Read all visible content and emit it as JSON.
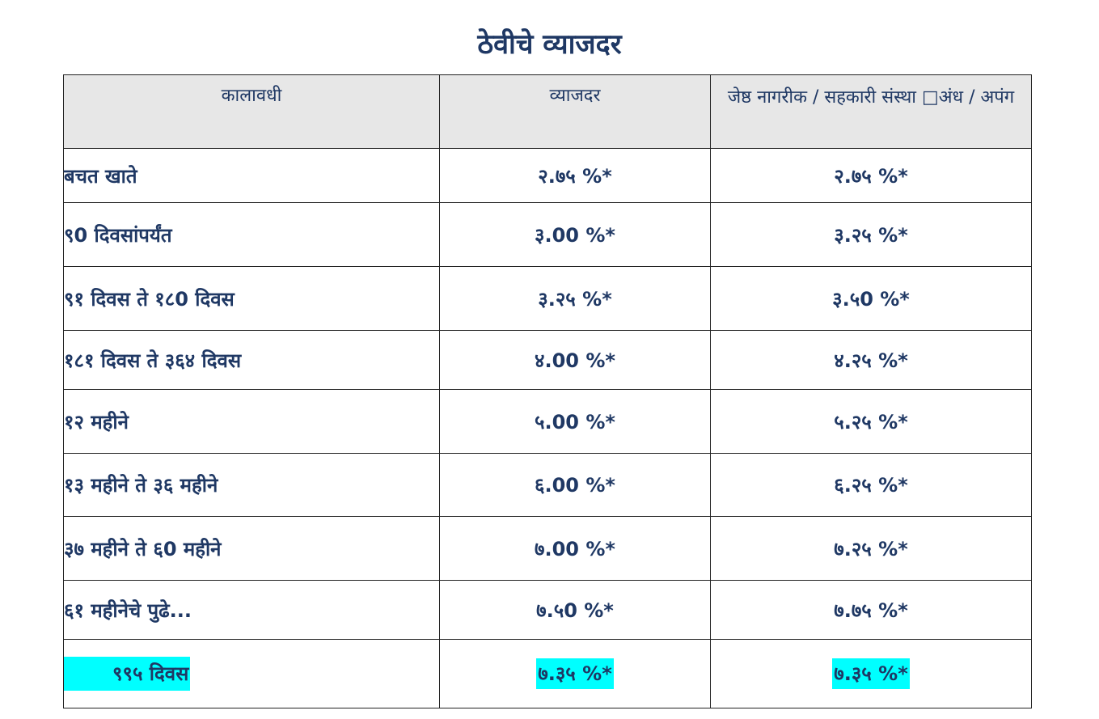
{
  "page": {
    "title": "ठेवीचे व्याजदर"
  },
  "table": {
    "headers": [
      "कालावधी",
      "व्याजदर",
      "जेष्ठ नागरीक / सहकारी संस्था □अंध / अपंग"
    ],
    "rows": [
      {
        "term": "बचत खाते",
        "rate": "२.७५ %*",
        "senior_rate": "२.७५ %*"
      },
      {
        "term": "९0 दिवसांपर्यंत",
        "rate": "३.00 %*",
        "senior_rate": "३.२५ %*"
      },
      {
        "term": "९१ दिवस ते १८0 दिवस",
        "rate": "३.२५ %*",
        "senior_rate": "३.५0 %*"
      },
      {
        "term": "१८१ दिवस ते ३६४ दिवस",
        "rate": "४.00 %*",
        "senior_rate": "४.२५ %*"
      },
      {
        "term": "१२ महीने",
        "rate": "५.00 %*",
        "senior_rate": "५.२५ %*"
      },
      {
        "term": "१३ महीने ते ३६ महीने",
        "rate": "६.00 %*",
        "senior_rate": "६.२५ %*"
      },
      {
        "term": "३७ महीने ते ६0 महीने",
        "rate": "७.00 %*",
        "senior_rate": "७.२५ %*"
      },
      {
        "term": "६१ महीनेचे पुढे...",
        "rate": "७.५0 %*",
        "senior_rate": "७.७५ %*"
      },
      {
        "term": "९९५ दिवस",
        "rate": "७.३५ %*",
        "senior_rate": "७.३५ %*"
      }
    ],
    "highlight_color": "#00ffff",
    "header_bg": "#e7e7e7",
    "text_color": "#1f3864"
  }
}
